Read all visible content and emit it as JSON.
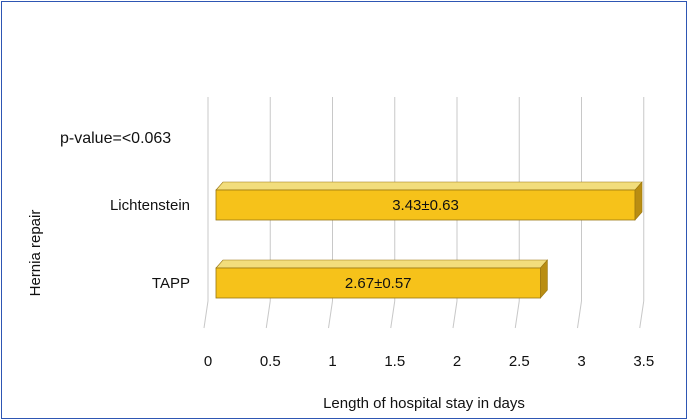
{
  "chart_data": {
    "type": "bar",
    "orientation": "horizontal",
    "style": "3d",
    "categories": [
      "Lichtenstein",
      "TAPP"
    ],
    "values": [
      3.43,
      2.67
    ],
    "data_labels": [
      "3.43±0.63",
      "2.67±0.57"
    ],
    "annotation": "p-value=<0.063",
    "xlabel": "Length of hospital stay in days",
    "ylabel": "Hernia repair",
    "xlim": [
      0,
      3.5
    ],
    "xticks": [
      "0",
      "0.5",
      "1",
      "1.5",
      "2",
      "2.5",
      "3",
      "3.5"
    ],
    "grid": true,
    "legend": "none",
    "colors": {
      "bar_front": "#f6c21a",
      "bar_top": "#f2dd7c",
      "bar_side": "#b98d12",
      "bar_edge": "#9a7610",
      "grid": "#c8c8c8",
      "frame": "#2e56b3"
    }
  }
}
